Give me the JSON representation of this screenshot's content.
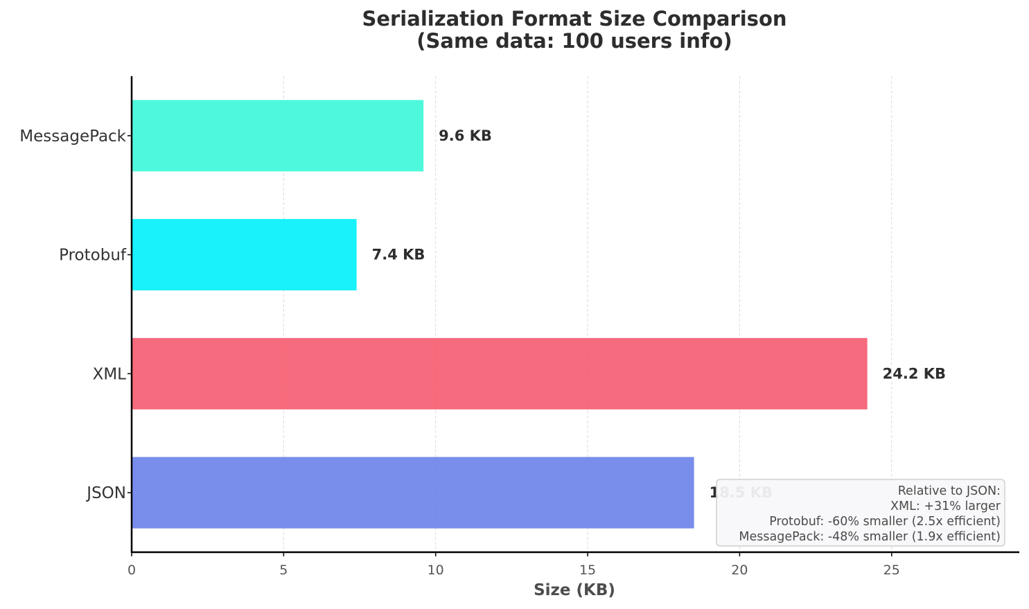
{
  "chart_data": {
    "type": "bar",
    "orientation": "horizontal",
    "title": [
      "Serialization Format Size Comparison",
      "(Same data: 100 users info)"
    ],
    "xlabel": "Size (KB)",
    "ylabel": "",
    "xlim": [
      0,
      29.2
    ],
    "xticks": [
      0,
      5,
      10,
      15,
      20,
      25
    ],
    "grid": "x-dashed",
    "categories": [
      "JSON",
      "XML",
      "Protobuf",
      "MessagePack"
    ],
    "values": [
      18.5,
      24.2,
      7.4,
      9.6
    ],
    "value_labels": [
      "18.5 KB",
      "24.2 KB",
      "7.4 KB",
      "9.6 KB"
    ],
    "colors": [
      "#6a81e9",
      "#f55b6f",
      "#00f0fb",
      "#3bf7d8"
    ],
    "annotation": {
      "placement": "bottom-right",
      "lines": [
        "Relative to JSON:",
        "XML: +31% larger",
        "Protobuf: -60% smaller (2.5x efficient)",
        "MessagePack: -48% smaller (1.9x efficient)"
      ]
    }
  }
}
